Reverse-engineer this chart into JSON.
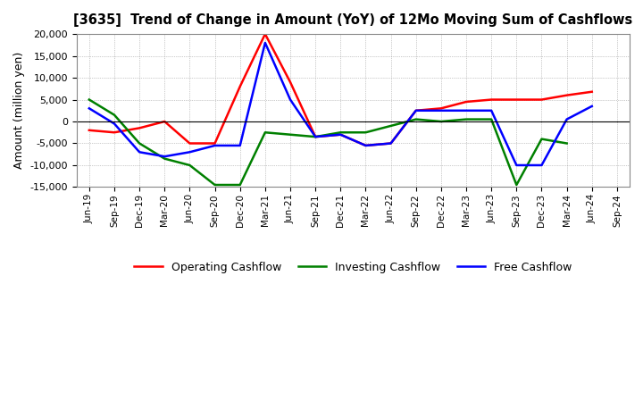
{
  "title": "[3635]  Trend of Change in Amount (YoY) of 12Mo Moving Sum of Cashflows",
  "ylabel": "Amount (million yen)",
  "x_labels": [
    "Jun-19",
    "Sep-19",
    "Dec-19",
    "Mar-20",
    "Jun-20",
    "Sep-20",
    "Dec-20",
    "Mar-21",
    "Jun-21",
    "Sep-21",
    "Dec-21",
    "Mar-22",
    "Jun-22",
    "Sep-22",
    "Dec-22",
    "Mar-23",
    "Jun-23",
    "Sep-23",
    "Dec-23",
    "Mar-24",
    "Jun-24",
    "Sep-24"
  ],
  "operating_cashflow": [
    -2000,
    -2500,
    -1500,
    0,
    -5000,
    -5000,
    8000,
    20000,
    9000,
    -3500,
    -3000,
    -5500,
    -5000,
    2500,
    3000,
    4500,
    5000,
    5000,
    5000,
    6000,
    6800,
    null
  ],
  "investing_cashflow": [
    5000,
    1500,
    -5000,
    -8500,
    -10000,
    -14500,
    -14500,
    -2500,
    -3000,
    -3500,
    -2500,
    -2500,
    -1000,
    500,
    0,
    500,
    500,
    -14500,
    -4000,
    -5000,
    null,
    null
  ],
  "free_cashflow": [
    3000,
    -500,
    -7000,
    -8000,
    -7000,
    -5500,
    -5500,
    18000,
    5000,
    -3500,
    -3000,
    -5500,
    -5000,
    2500,
    2500,
    2500,
    2500,
    -10000,
    -10000,
    500,
    3500,
    null
  ],
  "ylim": [
    -15000,
    20000
  ],
  "yticks": [
    -15000,
    -10000,
    -5000,
    0,
    5000,
    10000,
    15000,
    20000
  ],
  "colors": {
    "operating": "#ff0000",
    "investing": "#008000",
    "free": "#0000ff"
  },
  "background_color": "#ffffff",
  "grid_color": "#999999",
  "legend_labels": [
    "Operating Cashflow",
    "Investing Cashflow",
    "Free Cashflow"
  ]
}
